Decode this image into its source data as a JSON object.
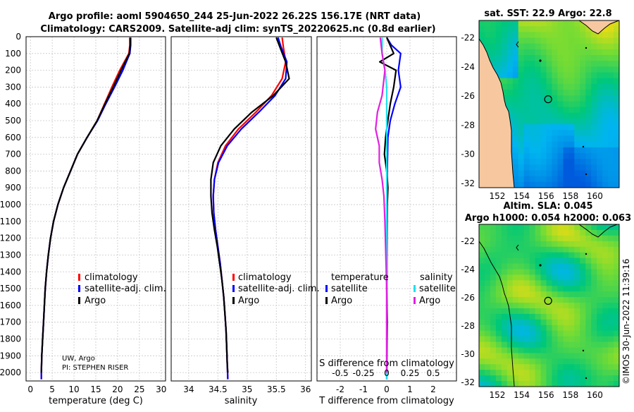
{
  "header": {
    "title_line1": "Argo profile: aoml 5904650_244 25-Jun-2022 26.22S 156.17E (NRT data)",
    "title_line2": "Climatology: CARS2009. Satellite-adj clim: synTS_20220625.nc (0.8d earlier)"
  },
  "credits": {
    "line1": "UW, Argo",
    "line2": "PI: STEPHEN RISER"
  },
  "footer_stamp": "©IMOS 30-Jun-2022 11:39:16",
  "colors": {
    "climatology": "#ff0000",
    "satellite": "#0000ff",
    "argo": "#000000",
    "s_argo": "#e020e0",
    "s_satellite": "#20e0ee",
    "land": "#f7c8a0",
    "coast": "#000000"
  },
  "chart_data": [
    {
      "id": "temperature",
      "type": "line",
      "xlabel": "temperature (deg C)",
      "ylabel": "",
      "xlim": [
        -1,
        31
      ],
      "ylim": [
        2050,
        0
      ],
      "xticks": [
        0,
        5,
        10,
        15,
        20,
        25,
        30
      ],
      "yticks": [
        0,
        100,
        200,
        300,
        400,
        500,
        600,
        700,
        800,
        900,
        1000,
        1100,
        1200,
        1300,
        1400,
        1500,
        1600,
        1700,
        1800,
        1900,
        2000
      ],
      "legend": [
        "climatology",
        "satellite-adj. clim.",
        "Argo"
      ],
      "series": [
        {
          "name": "climatology",
          "points": [
            [
              22.8,
              5
            ],
            [
              22.8,
              50
            ],
            [
              22.6,
              100
            ],
            [
              20.5,
              200
            ],
            [
              18.7,
              300
            ],
            [
              17.0,
              400
            ],
            [
              15.3,
              500
            ],
            [
              13.0,
              600
            ],
            [
              10.8,
              700
            ],
            [
              9.2,
              800
            ],
            [
              7.6,
              900
            ],
            [
              6.3,
              1000
            ],
            [
              5.3,
              1100
            ],
            [
              4.6,
              1200
            ],
            [
              4.1,
              1300
            ],
            [
              3.7,
              1400
            ],
            [
              3.4,
              1500
            ],
            [
              3.2,
              1600
            ],
            [
              3.0,
              1700
            ],
            [
              2.8,
              1800
            ],
            [
              2.6,
              1900
            ],
            [
              2.5,
              2000
            ],
            [
              2.5,
              2040
            ]
          ]
        },
        {
          "name": "satellite-adj. clim.",
          "points": [
            [
              23.0,
              5
            ],
            [
              23.0,
              50
            ],
            [
              22.8,
              100
            ],
            [
              21.2,
              200
            ],
            [
              19.3,
              300
            ],
            [
              17.3,
              400
            ],
            [
              15.4,
              500
            ],
            [
              13.0,
              600
            ],
            [
              10.8,
              700
            ],
            [
              9.2,
              800
            ],
            [
              7.6,
              900
            ],
            [
              6.3,
              1000
            ],
            [
              5.3,
              1100
            ],
            [
              4.6,
              1200
            ],
            [
              4.1,
              1300
            ],
            [
              3.7,
              1400
            ],
            [
              3.4,
              1500
            ],
            [
              3.2,
              1600
            ],
            [
              3.0,
              1700
            ],
            [
              2.8,
              1800
            ],
            [
              2.6,
              1900
            ],
            [
              2.5,
              2000
            ],
            [
              2.5,
              2040
            ]
          ]
        },
        {
          "name": "Argo",
          "points": [
            [
              22.9,
              5
            ],
            [
              22.9,
              50
            ],
            [
              22.7,
              100
            ],
            [
              20.8,
              200
            ],
            [
              19.0,
              300
            ],
            [
              17.1,
              400
            ],
            [
              15.3,
              500
            ],
            [
              13.0,
              600
            ],
            [
              10.8,
              700
            ],
            [
              9.2,
              800
            ],
            [
              7.6,
              900
            ],
            [
              6.3,
              1000
            ],
            [
              5.3,
              1100
            ],
            [
              4.6,
              1200
            ],
            [
              4.1,
              1300
            ],
            [
              3.7,
              1400
            ],
            [
              3.4,
              1500
            ],
            [
              3.2,
              1600
            ],
            [
              3.0,
              1700
            ],
            [
              2.8,
              1800
            ],
            [
              2.6,
              1900
            ],
            [
              2.5,
              2000
            ]
          ]
        }
      ]
    },
    {
      "id": "salinity",
      "type": "line",
      "xlabel": "salinity",
      "ylabel": "",
      "xlim": [
        33.7,
        36.1
      ],
      "ylim": [
        2050,
        0
      ],
      "xticks": [
        34,
        34.5,
        35,
        35.5,
        36
      ],
      "legend": [
        "climatology",
        "satellite-adj. clim.",
        "Argo"
      ],
      "series": [
        {
          "name": "climatology",
          "points": [
            [
              35.6,
              5
            ],
            [
              35.62,
              60
            ],
            [
              35.66,
              150
            ],
            [
              35.6,
              250
            ],
            [
              35.42,
              350
            ],
            [
              35.15,
              450
            ],
            [
              34.85,
              550
            ],
            [
              34.63,
              650
            ],
            [
              34.5,
              750
            ],
            [
              34.44,
              850
            ],
            [
              34.42,
              950
            ],
            [
              34.43,
              1050
            ],
            [
              34.46,
              1150
            ],
            [
              34.5,
              1250
            ],
            [
              34.54,
              1350
            ],
            [
              34.57,
              1450
            ],
            [
              34.6,
              1550
            ],
            [
              34.62,
              1650
            ],
            [
              34.64,
              1750
            ],
            [
              34.65,
              1850
            ],
            [
              34.66,
              1950
            ],
            [
              34.67,
              2040
            ]
          ]
        },
        {
          "name": "satellite-adj. clim.",
          "points": [
            [
              35.53,
              5
            ],
            [
              35.58,
              60
            ],
            [
              35.68,
              150
            ],
            [
              35.66,
              250
            ],
            [
              35.48,
              350
            ],
            [
              35.2,
              450
            ],
            [
              34.9,
              550
            ],
            [
              34.66,
              650
            ],
            [
              34.51,
              750
            ],
            [
              34.44,
              850
            ],
            [
              34.42,
              950
            ],
            [
              34.43,
              1050
            ],
            [
              34.46,
              1150
            ],
            [
              34.5,
              1250
            ],
            [
              34.54,
              1350
            ],
            [
              34.57,
              1450
            ],
            [
              34.6,
              1550
            ],
            [
              34.62,
              1650
            ],
            [
              34.64,
              1750
            ],
            [
              34.65,
              1850
            ],
            [
              34.66,
              1950
            ],
            [
              34.67,
              2040
            ]
          ]
        },
        {
          "name": "Argo",
          "points": [
            [
              35.5,
              5
            ],
            [
              35.56,
              60
            ],
            [
              35.66,
              150
            ],
            [
              35.72,
              250
            ],
            [
              35.45,
              350
            ],
            [
              35.08,
              450
            ],
            [
              34.78,
              550
            ],
            [
              34.55,
              650
            ],
            [
              34.42,
              750
            ],
            [
              34.38,
              850
            ],
            [
              34.38,
              950
            ],
            [
              34.4,
              1050
            ],
            [
              34.44,
              1150
            ],
            [
              34.49,
              1250
            ],
            [
              34.53,
              1350
            ],
            [
              34.57,
              1450
            ],
            [
              34.6,
              1550
            ],
            [
              34.62,
              1650
            ],
            [
              34.64,
              1750
            ],
            [
              34.65,
              1850
            ],
            [
              34.66,
              1950
            ],
            [
              34.67,
              2000
            ]
          ]
        }
      ]
    },
    {
      "id": "differences",
      "type": "line",
      "xlabel": "T difference from climatology",
      "x2label": "S difference from climatology",
      "xlim": [
        -3,
        3
      ],
      "x2lim": [
        -0.75,
        0.75
      ],
      "ylim": [
        2050,
        0
      ],
      "xticks": [
        -2,
        -1,
        0,
        1,
        2
      ],
      "x2ticks": [
        -0.5,
        -0.25,
        0,
        0.25,
        0.5
      ],
      "x2ticklabels": [
        "-0.5",
        "-0.25",
        "0",
        "0.25",
        "0.5"
      ],
      "legend_left_title": "temperature",
      "legend_left": [
        "satellite",
        "Argo"
      ],
      "legend_right_title": "salinity",
      "legend_right": [
        "satellite",
        "Argo"
      ],
      "series": [
        {
          "name": "T satellite",
          "axis": "T",
          "points": [
            [
              0.0,
              5
            ],
            [
              0.2,
              50
            ],
            [
              0.6,
              100
            ],
            [
              0.5,
              200
            ],
            [
              0.6,
              300
            ],
            [
              0.35,
              400
            ],
            [
              0.15,
              500
            ],
            [
              0.05,
              600
            ],
            [
              0.02,
              800
            ],
            [
              0.0,
              1000
            ],
            [
              0.0,
              2040
            ]
          ]
        },
        {
          "name": "T Argo",
          "axis": "T",
          "points": [
            [
              0.0,
              5
            ],
            [
              0.3,
              100
            ],
            [
              -0.3,
              150
            ],
            [
              0.4,
              200
            ],
            [
              0.3,
              300
            ],
            [
              0.15,
              400
            ],
            [
              0.05,
              500
            ],
            [
              -0.05,
              600
            ],
            [
              -0.1,
              700
            ],
            [
              0.0,
              800
            ],
            [
              0.05,
              900
            ],
            [
              0.02,
              1000
            ],
            [
              0.0,
              1500
            ],
            [
              0.02,
              1700
            ],
            [
              0.0,
              2000
            ]
          ]
        },
        {
          "name": "S satellite",
          "axis": "S",
          "points": [
            [
              -0.05,
              5
            ],
            [
              -0.05,
              100
            ],
            [
              -0.02,
              200
            ],
            [
              0.0,
              300
            ],
            [
              0.0,
              400
            ],
            [
              0.0,
              600
            ],
            [
              0.0,
              800
            ],
            [
              0.0,
              2040
            ]
          ]
        },
        {
          "name": "S Argo",
          "axis": "S",
          "points": [
            [
              -0.07,
              5
            ],
            [
              -0.05,
              100
            ],
            [
              -0.02,
              200
            ],
            [
              -0.05,
              350
            ],
            [
              -0.1,
              450
            ],
            [
              -0.12,
              550
            ],
            [
              -0.08,
              650
            ],
            [
              -0.08,
              750
            ],
            [
              -0.05,
              850
            ],
            [
              -0.03,
              950
            ],
            [
              -0.02,
              1100
            ],
            [
              -0.01,
              1300
            ],
            [
              0.0,
              1500
            ],
            [
              0.0,
              2000
            ]
          ]
        }
      ]
    },
    {
      "id": "sst_map",
      "type": "heatmap",
      "title": "sat. SST: 22.9 Argo: 22.8",
      "xlim": [
        150.5,
        162
      ],
      "ylim": [
        -32.3,
        -20.8
      ],
      "xticks": [
        152,
        154,
        156,
        158,
        160
      ],
      "yticks": [
        -22,
        -24,
        -26,
        -28,
        -30,
        -32
      ],
      "argo_position": [
        156.17,
        -26.22
      ]
    },
    {
      "id": "sla_map",
      "type": "heatmap",
      "title_line1": "Altim. SLA: 0.045",
      "title_line2": "Argo h1000: 0.054 h2000: 0.063",
      "xlim": [
        150.5,
        162
      ],
      "ylim": [
        -32.3,
        -20.8
      ],
      "xticks": [
        152,
        154,
        156,
        158,
        160
      ],
      "yticks": [
        -22,
        -24,
        -26,
        -28,
        -30,
        -32
      ],
      "argo_position": [
        156.17,
        -26.22
      ]
    }
  ]
}
